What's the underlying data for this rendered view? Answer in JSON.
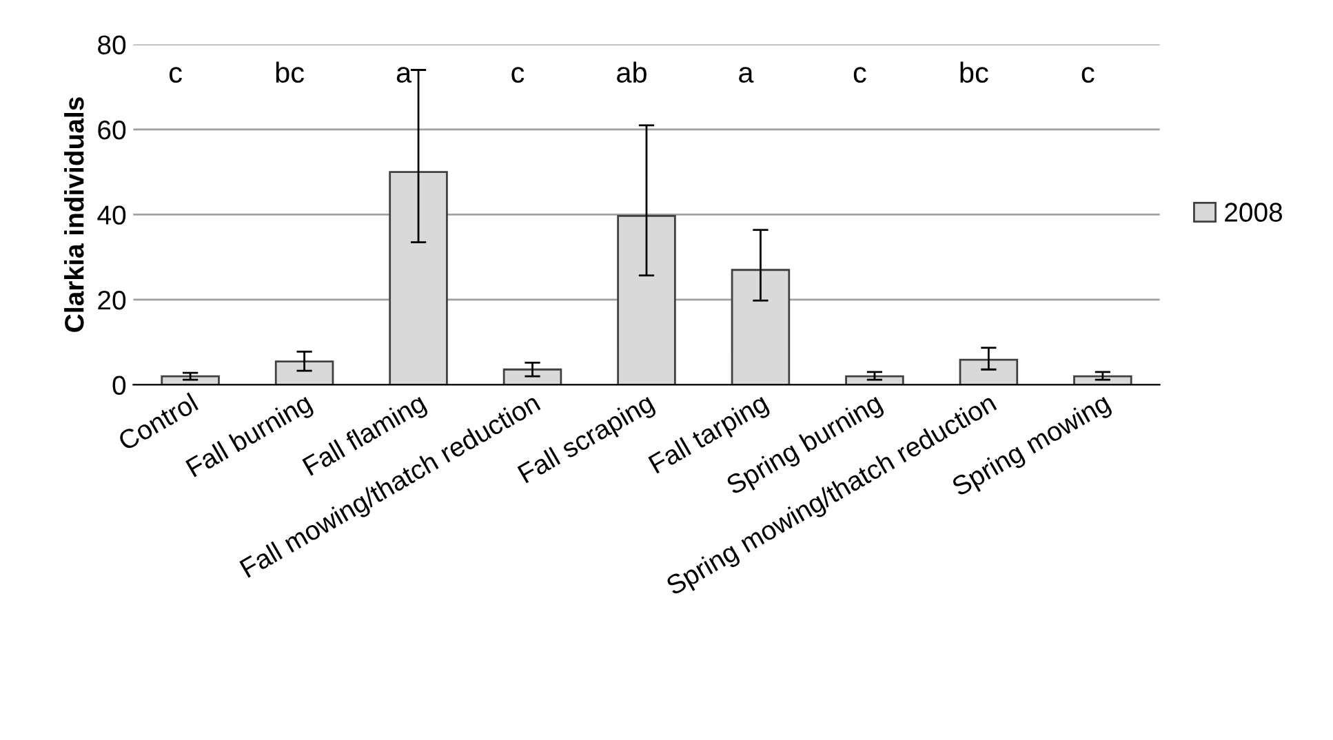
{
  "chart_data": {
    "type": "bar",
    "ylabel": "Clarkia individuals",
    "categories": [
      "Control",
      "Fall burning",
      "Fall flaming",
      "Fall mowing/thatch reduction",
      "Fall scraping",
      "Fall tarping",
      "Spring burning",
      "Spring mowing/thatch reduction",
      "Spring mowing"
    ],
    "series": [
      {
        "name": "2008",
        "color": "#d9d9d9",
        "values": [
          2,
          5.5,
          50,
          3.6,
          39.7,
          27,
          2,
          5.9,
          2
        ],
        "errors": [
          [
            1.2,
            2.8
          ],
          [
            3.3,
            7.8
          ],
          [
            33.5,
            74
          ],
          [
            2,
            5.2
          ],
          [
            25.7,
            61
          ],
          [
            19.8,
            36.4
          ],
          [
            1.2,
            3
          ],
          [
            3.6,
            8.7
          ],
          [
            1.2,
            3
          ]
        ]
      }
    ],
    "annotations": [
      "c",
      "bc",
      "a",
      "c",
      "ab",
      "a",
      "c",
      "bc",
      "c"
    ],
    "ylim": [
      0,
      80
    ],
    "yticks": [
      0,
      20,
      40,
      60,
      80
    ],
    "grid": "y",
    "legend": "right"
  }
}
